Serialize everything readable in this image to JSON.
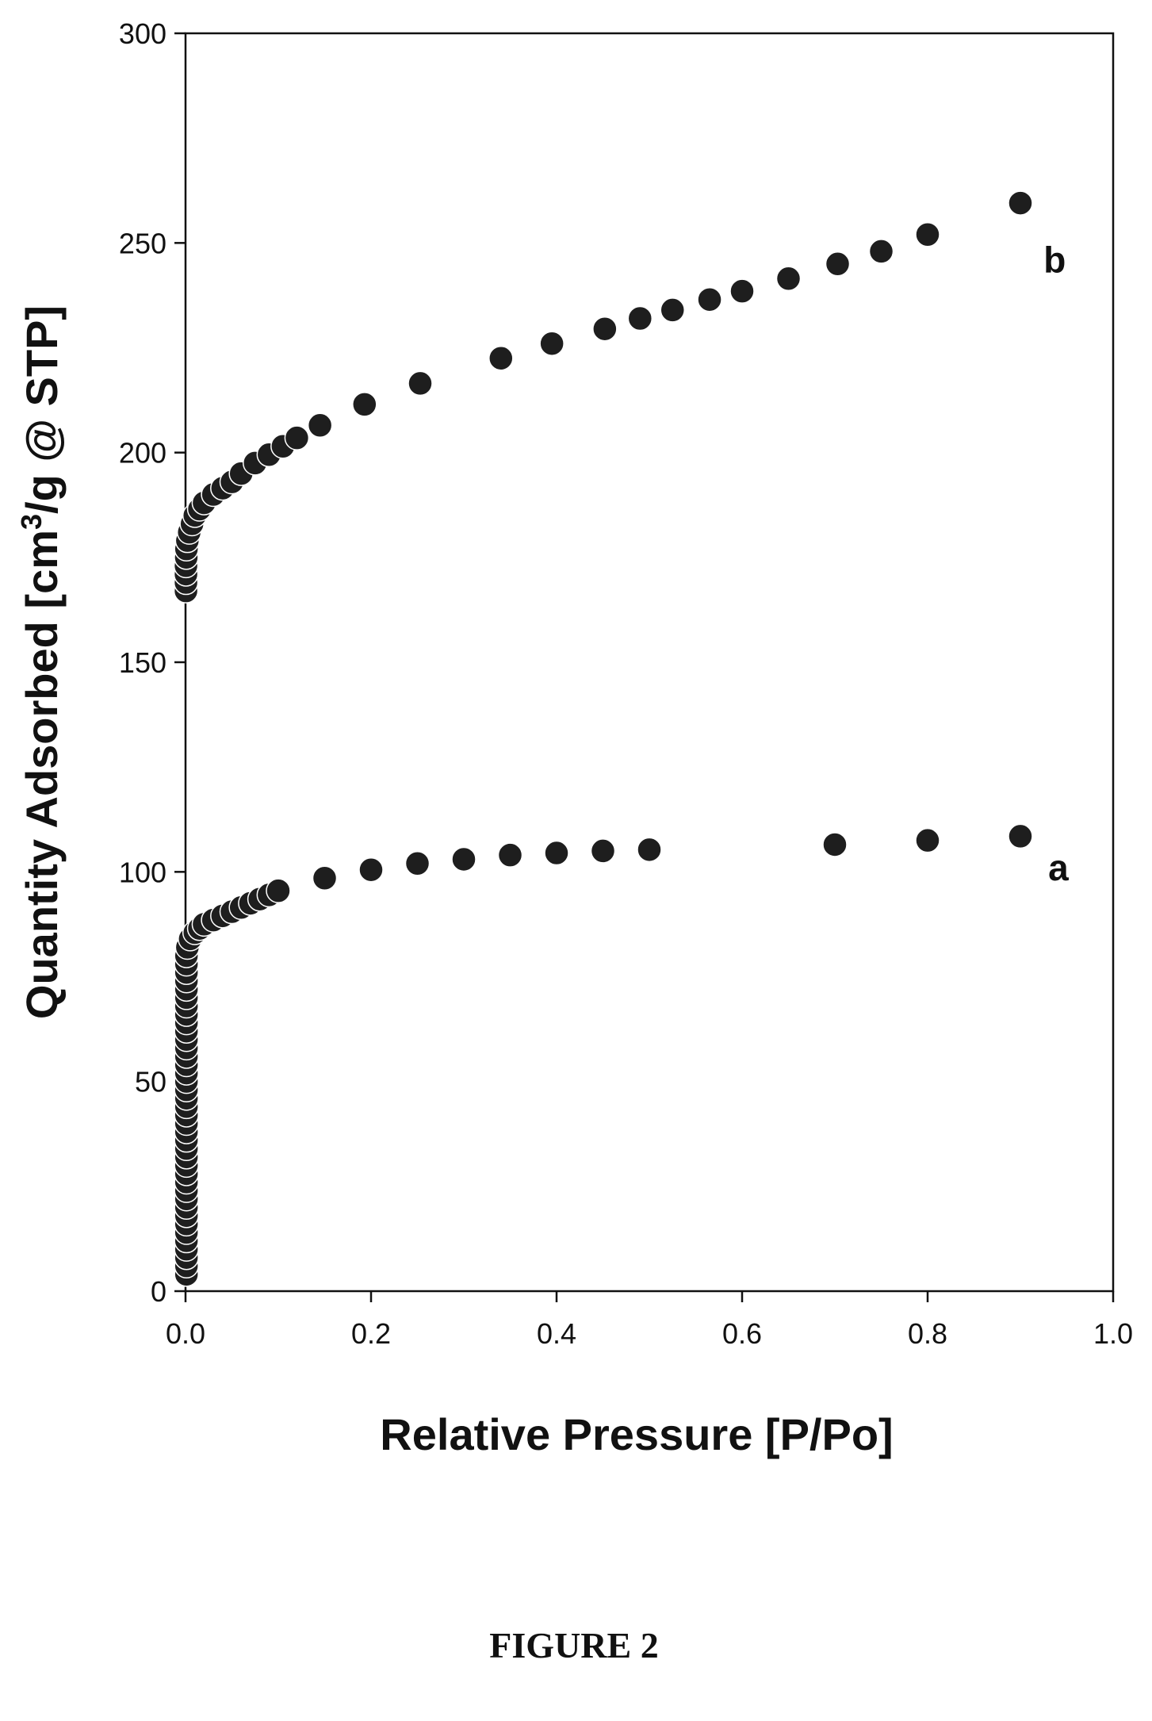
{
  "figure_caption": "FIGURE 2",
  "chart_data": {
    "type": "scatter",
    "title": "",
    "xlabel": "Relative Pressure [P/Po]",
    "ylabel_main": "Quantity Adsorbed [cm",
    "ylabel_sup": "3",
    "ylabel_tail": "/g @ STP]",
    "xlim": [
      0,
      1.0
    ],
    "ylim": [
      0,
      300
    ],
    "xticks": [
      "0.0",
      "0.2",
      "0.4",
      "0.6",
      "0.8",
      "1.0"
    ],
    "xtick_values": [
      0,
      0.2,
      0.4,
      0.6,
      0.8,
      1.0
    ],
    "yticks": [
      "0",
      "50",
      "100",
      "150",
      "200",
      "250",
      "300"
    ],
    "ytick_values": [
      0,
      50,
      100,
      150,
      200,
      250,
      300
    ],
    "grid": false,
    "marker_color": "#1e1e1e",
    "series": [
      {
        "name": "a",
        "x": [
          0.001,
          0.001,
          0.001,
          0.001,
          0.001,
          0.001,
          0.001,
          0.001,
          0.001,
          0.001,
          0.001,
          0.001,
          0.001,
          0.001,
          0.001,
          0.001,
          0.001,
          0.001,
          0.001,
          0.001,
          0.001,
          0.001,
          0.001,
          0.001,
          0.001,
          0.001,
          0.001,
          0.001,
          0.001,
          0.001,
          0.001,
          0.001,
          0.001,
          0.001,
          0.001,
          0.001,
          0.001,
          0.001,
          0.001,
          0.002,
          0.005,
          0.01,
          0.015,
          0.02,
          0.03,
          0.04,
          0.05,
          0.06,
          0.07,
          0.08,
          0.09,
          0.1,
          0.15,
          0.2,
          0.25,
          0.3,
          0.35,
          0.4,
          0.45,
          0.5,
          0.7,
          0.8,
          0.9
        ],
        "y": [
          4,
          6,
          8,
          10,
          12,
          14,
          16,
          18,
          20,
          22,
          24,
          26,
          28,
          30,
          32,
          34,
          36,
          38,
          40,
          42,
          44,
          46,
          48,
          50,
          52,
          54,
          56,
          58,
          60,
          62,
          64,
          66,
          68,
          70,
          72,
          74,
          76,
          78,
          80,
          82,
          84,
          85.5,
          86.5,
          87.5,
          88.5,
          89.5,
          90.5,
          91.5,
          92.5,
          93.5,
          94.5,
          95.5,
          98.5,
          100.5,
          102,
          103,
          104,
          104.5,
          105,
          105.3,
          106.5,
          107.5,
          108.5
        ]
      },
      {
        "name": "b",
        "x": [
          0.0005,
          0.0005,
          0.0005,
          0.0005,
          0.0008,
          0.001,
          0.002,
          0.004,
          0.007,
          0.01,
          0.015,
          0.02,
          0.03,
          0.04,
          0.05,
          0.06,
          0.075,
          0.09,
          0.105,
          0.12,
          0.145,
          0.193,
          0.253,
          0.34,
          0.395,
          0.452,
          0.49,
          0.525,
          0.565,
          0.6,
          0.65,
          0.703,
          0.75,
          0.8,
          0.9
        ],
        "y": [
          167,
          169,
          171,
          173,
          175,
          177,
          179,
          181,
          183,
          185,
          186.5,
          188,
          190,
          191.5,
          193,
          195,
          197.5,
          199.5,
          201.5,
          203.5,
          206.5,
          211.5,
          216.5,
          222.5,
          226,
          229.5,
          232,
          234,
          236.5,
          238.5,
          241.5,
          245,
          248,
          252,
          259.5
        ]
      }
    ],
    "annotations": [
      {
        "text": "b",
        "x": 0.925,
        "y": 243
      },
      {
        "text": "a",
        "x": 0.93,
        "y": 98
      }
    ]
  }
}
